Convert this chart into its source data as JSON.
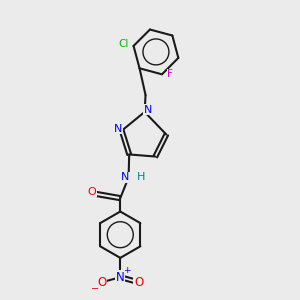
{
  "background_color": "#ebebeb",
  "bond_color": "#1a1a1a",
  "atom_colors": {
    "N": "#0000ee",
    "O": "#ee0000",
    "Cl": "#00bb00",
    "F": "#dd00dd",
    "H": "#008888",
    "C": "#1a1a1a"
  }
}
